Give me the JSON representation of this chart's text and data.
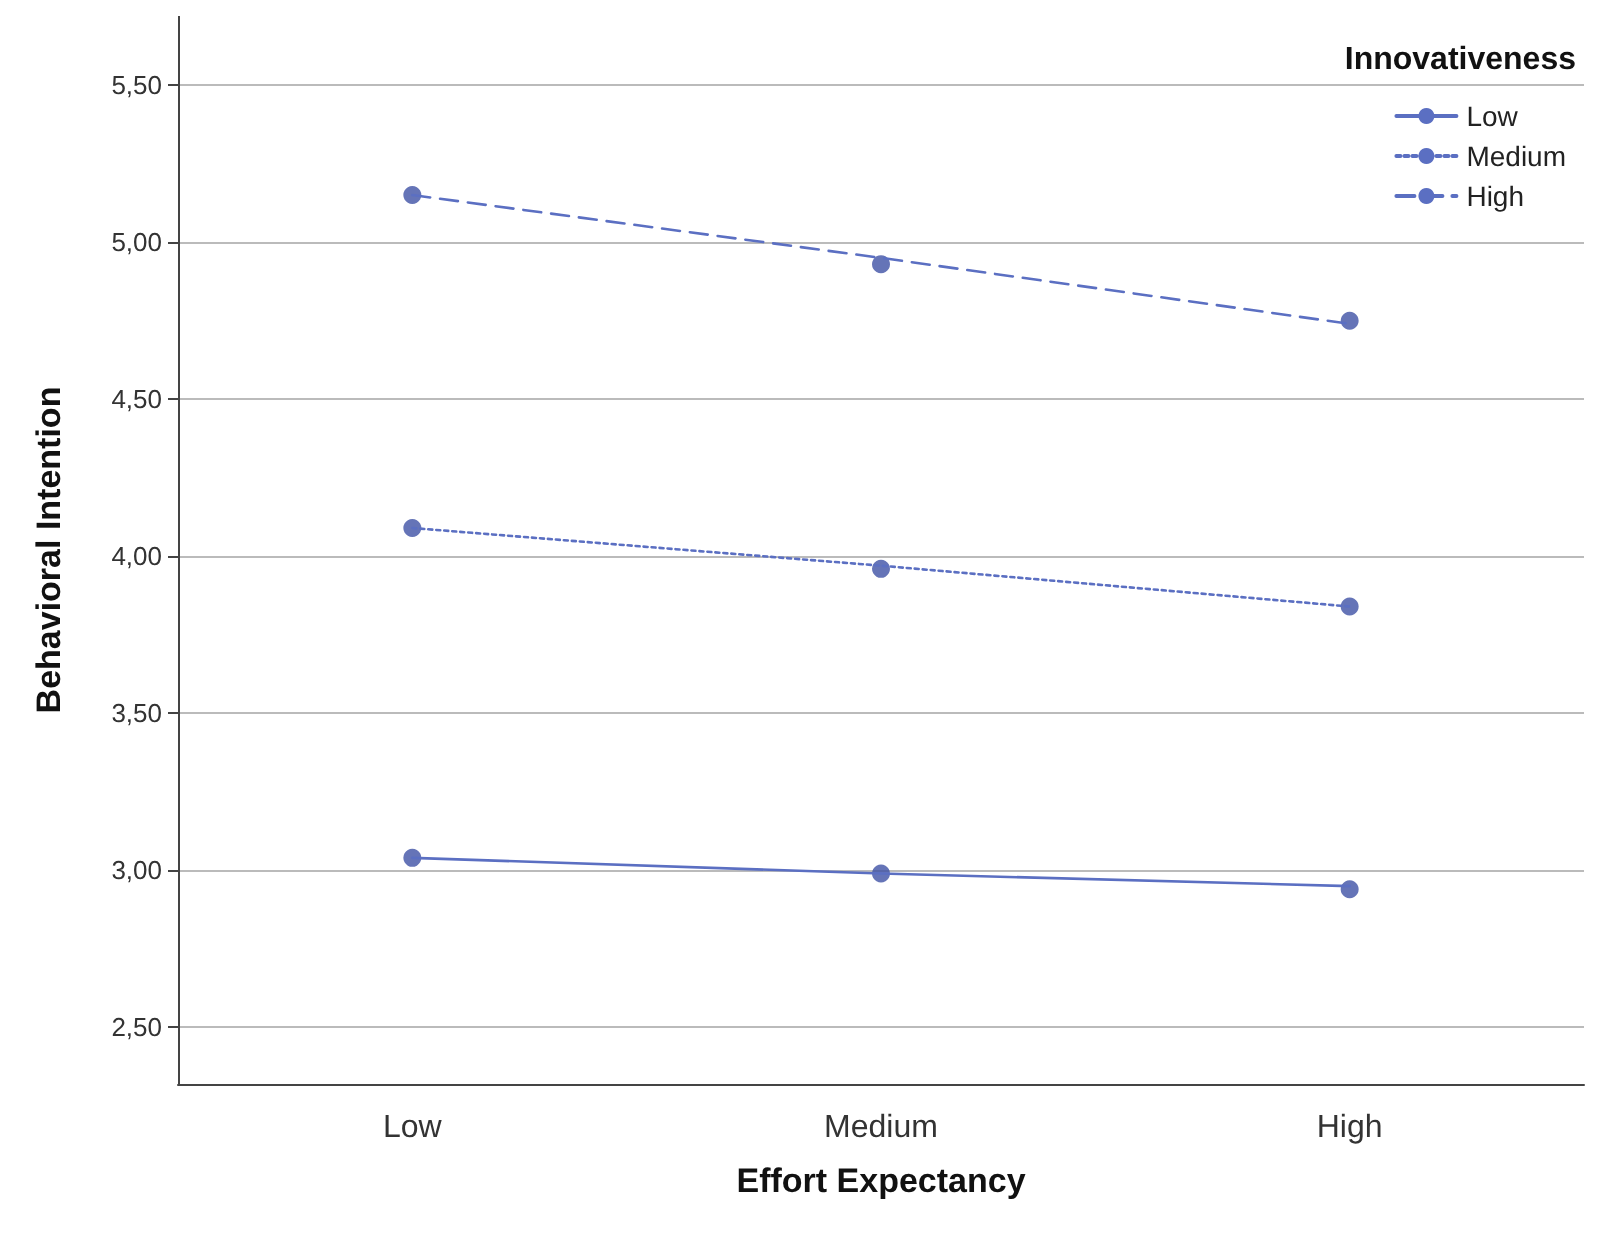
{
  "chart_data": {
    "type": "scatter",
    "xlabel": "Effort Expectancy",
    "ylabel": "Behavioral Intention",
    "legend_title": "Innovativeness",
    "legend": "top right",
    "grid": "y",
    "categories": [
      "Low",
      "Medium",
      "High"
    ],
    "ylim": [
      2.32,
      5.72
    ],
    "yticks": [
      {
        "value": 2.5,
        "label": "2,50"
      },
      {
        "value": 3,
        "label": "3,00"
      },
      {
        "value": 3.5,
        "label": "3,50"
      },
      {
        "value": 4,
        "label": "4,00"
      },
      {
        "value": 4.5,
        "label": "4,50"
      },
      {
        "value": 5,
        "label": "5,00"
      },
      {
        "value": 5.5,
        "label": "5,50"
      }
    ],
    "series": [
      {
        "color": "#3f51a5",
        "marker": "circle",
        "values": [
          3.04,
          2.99,
          2.94
        ]
      },
      {
        "color": "#3f51a5",
        "marker": "circle",
        "values": [
          4.09,
          3.96,
          3.84
        ]
      },
      {
        "color": "#3f51a5",
        "marker": "circle",
        "values": [
          5.15,
          4.93,
          4.75
        ]
      },
      {
        "type": "line",
        "name": "Low",
        "color": "#5b6fc2",
        "line_style": "solid",
        "marker": "none",
        "values": [
          3.04,
          2.99,
          2.95
        ]
      },
      {
        "type": "line",
        "name": "Medium",
        "color": "#5b6fc2",
        "line_style": "dotted",
        "marker": "none",
        "values": [
          4.09,
          3.97,
          3.84
        ]
      },
      {
        "type": "line",
        "name": "High",
        "color": "#5b6fc2",
        "line_style": "dashed",
        "marker": "none",
        "values": [
          5.15,
          4.95,
          4.74
        ]
      }
    ]
  }
}
